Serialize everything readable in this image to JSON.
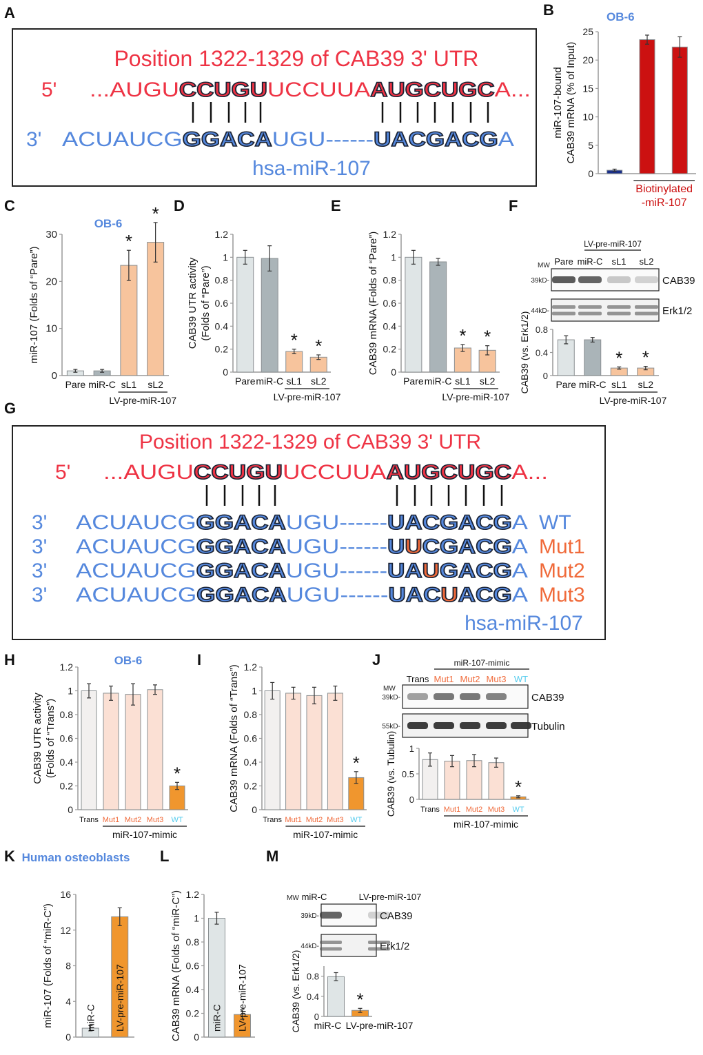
{
  "panel_letters": [
    "A",
    "B",
    "C",
    "D",
    "E",
    "F",
    "G",
    "H",
    "I",
    "J",
    "K",
    "L",
    "M"
  ],
  "cell_labels": {
    "ob6_b": "OB-6",
    "ob6_c": "OB-6",
    "ob6_h": "OB-6",
    "human": "Human osteoblasts"
  },
  "colors": {
    "red": "#ee3344",
    "blue": "#5588dd",
    "orange": "#f0852a",
    "darkred": "#cc1111",
    "lightgray": "#dfe5e6",
    "gray": "#aab4b8",
    "peach": "#f7c49d",
    "pink": "#fbe0d4",
    "orangeText": "#f06a3a",
    "cyan": "#55ccee"
  },
  "seq_a": {
    "title": "Position 1322-1329 of CAB39 3' UTR",
    "five_prime": "5'",
    "utr_segments": [
      {
        "t": "...AUGU",
        "b": false
      },
      {
        "t": "CCUGU",
        "b": true
      },
      {
        "t": "UCCUUA",
        "b": false
      },
      {
        "t": "AUGCUGC",
        "b": true
      },
      {
        "t": "A...",
        "b": false
      }
    ],
    "three_prime": "3'",
    "mir_segments": [
      {
        "t": "ACUAUCG",
        "b": false
      },
      {
        "t": "GGACA",
        "b": true
      },
      {
        "t": "UGU------",
        "b": false
      },
      {
        "t": "UACGACG",
        "b": true
      },
      {
        "t": "A",
        "b": false
      }
    ],
    "mir_name": "hsa-miR-107"
  },
  "seq_g": {
    "title": "Position 1322-1329 of CAB39 3' UTR",
    "five_prime": "5'",
    "utr_segments": [
      {
        "t": "...AUGU",
        "b": false
      },
      {
        "t": "CCUGU",
        "b": true
      },
      {
        "t": "UCCUUA",
        "b": false
      },
      {
        "t": "AUGCUGC",
        "b": true
      },
      {
        "t": "A...",
        "b": false
      }
    ],
    "rows": [
      {
        "prime": "3'",
        "label": "WT",
        "mut_index": -1
      },
      {
        "prime": "3'",
        "label": "Mut1",
        "mut_index": 1
      },
      {
        "prime": "3'",
        "label": "Mut2",
        "mut_index": 2
      },
      {
        "prime": "3'",
        "label": "Mut3",
        "mut_index": 3
      }
    ],
    "mir_prefix": "ACUAUCG",
    "mir_seed1": "GGACA",
    "mir_mid": "UGU------",
    "mir_seed2": [
      "U",
      "A",
      "C",
      "G",
      "A",
      "C",
      "G"
    ],
    "mir_mut_char": "U",
    "mir_suffix": "A",
    "mir_name": "hsa-miR-107"
  },
  "blots": {
    "f": {
      "mw": "MW",
      "group": "LV-pre-miR-107",
      "lanes": [
        "Pare",
        "miR-C",
        "sL1",
        "sL2"
      ],
      "bands": [
        {
          "kd": "39kD-",
          "name": "CAB39"
        },
        {
          "kd": "44kD-",
          "name": "Erk1/2"
        }
      ]
    },
    "j": {
      "mw": "MW",
      "group": "miR-107-mimic",
      "lanes": [
        "Trans",
        "Mut1",
        "Mut2",
        "Mut3",
        "WT"
      ],
      "bands": [
        {
          "kd": "39kD-",
          "name": "CAB39"
        },
        {
          "kd": "55kD-",
          "name": "Tubulin"
        }
      ]
    },
    "m": {
      "mw": "MW",
      "lanes": [
        "miR-C",
        "LV-pre-miR-107"
      ],
      "bands": [
        {
          "kd": "39kD-",
          "name": "CAB39"
        },
        {
          "kd": "44kD-",
          "name": "Erk1/2"
        }
      ]
    }
  },
  "chart_data": [
    {
      "id": "B",
      "type": "bar",
      "ylabel": "miR-107-bound\nCAB39 mRNA (% of Input)",
      "ylim": [
        0,
        25
      ],
      "yticks": [
        0,
        5,
        10,
        15,
        20,
        25
      ],
      "values": [
        0.6,
        23.6,
        22.3
      ],
      "errors": [
        0.2,
        0.8,
        1.8
      ],
      "categories": [
        "",
        "",
        ""
      ],
      "colors": [
        "#1a2f8a",
        "#cc1111",
        "#cc1111"
      ],
      "group_label": "Biotinylated\n-miR-107",
      "group_range": [
        1,
        2
      ],
      "asterisk": []
    },
    {
      "id": "C",
      "type": "bar",
      "ylabel": "miR-107 (Folds of “Pare”)",
      "ylim": [
        0,
        30
      ],
      "yticks": [
        0,
        10,
        20,
        30
      ],
      "values": [
        1.0,
        1.0,
        23.4,
        28.3
      ],
      "errors": [
        0.3,
        0.3,
        3.2,
        4.2
      ],
      "categories": [
        "Pare",
        "miR-C",
        "sL1",
        "sL2"
      ],
      "colors": [
        "#dfe5e6",
        "#aab4b8",
        "#f7c49d",
        "#f7c49d"
      ],
      "group_label": "LV-pre-miR-107",
      "group_range": [
        2,
        3
      ],
      "asterisk": [
        2,
        3
      ]
    },
    {
      "id": "D",
      "type": "bar",
      "ylabel": "CAB39 UTR activity\n(Folds of “Pare”)",
      "ylim": [
        0,
        1.2
      ],
      "yticks": [
        0,
        0.2,
        0.4,
        0.6,
        0.8,
        1,
        1.2
      ],
      "values": [
        1.0,
        0.99,
        0.18,
        0.13
      ],
      "errors": [
        0.06,
        0.11,
        0.02,
        0.02
      ],
      "categories": [
        "Pare",
        "miR-C",
        "sL1",
        "sL2"
      ],
      "colors": [
        "#dfe5e6",
        "#aab4b8",
        "#f7c49d",
        "#f7c49d"
      ],
      "group_label": "LV-pre-miR-107",
      "group_range": [
        2,
        3
      ],
      "asterisk": [
        2,
        3
      ]
    },
    {
      "id": "E",
      "type": "bar",
      "ylabel": "CAB39 mRNA (Folds of “Pare”)",
      "ylim": [
        0,
        1.2
      ],
      "yticks": [
        0,
        0.2,
        0.4,
        0.6,
        0.8,
        1,
        1.2
      ],
      "values": [
        1.0,
        0.96,
        0.21,
        0.19
      ],
      "errors": [
        0.06,
        0.03,
        0.03,
        0.04
      ],
      "categories": [
        "Pare",
        "miR-C",
        "sL1",
        "sL2"
      ],
      "colors": [
        "#dfe5e6",
        "#aab4b8",
        "#f7c49d",
        "#f7c49d"
      ],
      "group_label": "LV-pre-miR-107",
      "group_range": [
        2,
        3
      ],
      "asterisk": [
        2,
        3
      ]
    },
    {
      "id": "F",
      "type": "bar",
      "ylabel": "CAB39 (vs. Erk1/2)",
      "ylim": [
        0,
        0.8
      ],
      "yticks": [
        0,
        0.4,
        0.8
      ],
      "values": [
        0.62,
        0.62,
        0.13,
        0.13
      ],
      "errors": [
        0.07,
        0.04,
        0.02,
        0.03
      ],
      "categories": [
        "Pare",
        "miR-C",
        "sL1",
        "sL2"
      ],
      "colors": [
        "#dfe5e6",
        "#aab4b8",
        "#f7c49d",
        "#f7c49d"
      ],
      "group_label": "LV-pre-miR-107",
      "group_range": [
        2,
        3
      ],
      "asterisk": [
        2,
        3
      ]
    },
    {
      "id": "H",
      "type": "bar",
      "ylabel": "CAB39 UTR activity\n(Folds of “Trans”)",
      "ylim": [
        0,
        1.2
      ],
      "yticks": [
        0,
        0.2,
        0.4,
        0.6,
        0.8,
        1,
        1.2
      ],
      "values": [
        1.0,
        0.98,
        0.97,
        1.01,
        0.2
      ],
      "errors": [
        0.06,
        0.06,
        0.09,
        0.04,
        0.03
      ],
      "categories": [
        "Trans",
        "Mut1",
        "Mut2",
        "Mut3",
        "WT"
      ],
      "colors": [
        "#f2f0ef",
        "#fbe0d4",
        "#fbe0d4",
        "#fbe0d4",
        "#f0962e"
      ],
      "group_label": "miR-107-mimic",
      "group_range": [
        1,
        4
      ],
      "asterisk": [
        4
      ]
    },
    {
      "id": "I",
      "type": "bar",
      "ylabel": "CAB39 mRNA (Folds of “Trans”)",
      "ylim": [
        0,
        1.2
      ],
      "yticks": [
        0,
        0.2,
        0.4,
        0.6,
        0.8,
        1,
        1.2
      ],
      "values": [
        1.0,
        0.98,
        0.96,
        0.98,
        0.27
      ],
      "errors": [
        0.07,
        0.05,
        0.07,
        0.06,
        0.05
      ],
      "categories": [
        "Trans",
        "Mut1",
        "Mut2",
        "Mut3",
        "WT"
      ],
      "colors": [
        "#f2f0ef",
        "#fbe0d4",
        "#fbe0d4",
        "#fbe0d4",
        "#f0962e"
      ],
      "group_label": "miR-107-mimic",
      "group_range": [
        1,
        4
      ],
      "asterisk": [
        4
      ]
    },
    {
      "id": "J",
      "type": "bar",
      "ylabel": "CAB39 (vs. Tubulin)",
      "ylim": [
        0,
        1
      ],
      "yticks": [
        0,
        0.5,
        1
      ],
      "values": [
        0.78,
        0.75,
        0.76,
        0.72,
        0.05
      ],
      "errors": [
        0.13,
        0.11,
        0.12,
        0.09,
        0.02
      ],
      "categories": [
        "Trans",
        "Mut1",
        "Mut2",
        "Mut3",
        "WT"
      ],
      "colors": [
        "#f2f0ef",
        "#fbe0d4",
        "#fbe0d4",
        "#fbe0d4",
        "#f0962e"
      ],
      "group_label": "miR-107-mimic",
      "group_range": [
        1,
        4
      ],
      "asterisk": [
        4
      ]
    },
    {
      "id": "K",
      "type": "bar",
      "ylabel": "miR-107 (Folds of “miR-C”)",
      "ylim": [
        0,
        16
      ],
      "yticks": [
        0,
        4,
        8,
        12,
        16
      ],
      "values": [
        1.0,
        13.5
      ],
      "errors": [
        0.3,
        1.0
      ],
      "categories": [
        "miR-C",
        "LV-pre-miR-107"
      ],
      "colors": [
        "#dfe5e6",
        "#f0962e"
      ],
      "asterisk": []
    },
    {
      "id": "L",
      "type": "bar",
      "ylabel": "CAB39 mRNA (Folds of “miR-C”)",
      "ylim": [
        0,
        1.2
      ],
      "yticks": [
        0,
        0.2,
        0.4,
        0.6,
        0.8,
        1,
        1.2
      ],
      "values": [
        1.0,
        0.19
      ],
      "errors": [
        0.05,
        0.04
      ],
      "categories": [
        "miR-C",
        "LV-pre-miR-107"
      ],
      "colors": [
        "#dfe5e6",
        "#f0962e"
      ],
      "asterisk": []
    },
    {
      "id": "M",
      "type": "bar",
      "ylabel": "CAB39 (vs. Erk1/2)",
      "ylim": [
        0,
        1
      ],
      "yticks": [
        0,
        0.4,
        0.8
      ],
      "values": [
        0.79,
        0.12
      ],
      "errors": [
        0.08,
        0.04
      ],
      "categories": [
        "miR-C",
        "LV-pre-miR-107"
      ],
      "colors": [
        "#dfe5e6",
        "#f0962e"
      ],
      "asterisk": [
        1
      ]
    }
  ]
}
